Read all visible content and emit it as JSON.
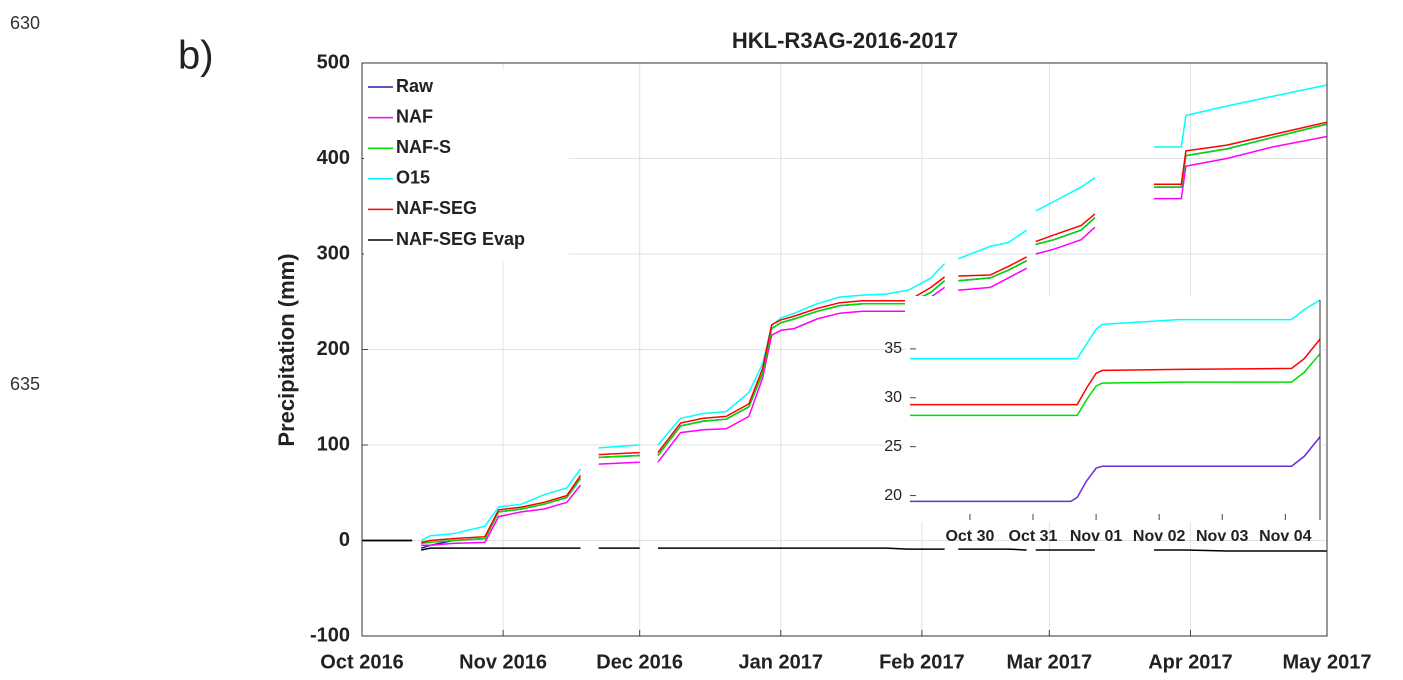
{
  "page": {
    "line_numbers": [
      "630",
      "635"
    ],
    "panel_label": "b)"
  },
  "chart_data": [
    {
      "type": "line",
      "title": "HKL-R3AG-2016-2017",
      "y_label": "Precipitation (mm)",
      "x": [
        0,
        11,
        12,
        13,
        15,
        20,
        27,
        30,
        35,
        40,
        45,
        48,
        50,
        52,
        61,
        63,
        65,
        70,
        75,
        80,
        85,
        88,
        90,
        92,
        95,
        100,
        105,
        110,
        115,
        120,
        125,
        128,
        129.5,
        131,
        138,
        142,
        146,
        147,
        148,
        152,
        158,
        161,
        167,
        174,
        180,
        181,
        190,
        200,
        212
      ],
      "xlim": [
        0,
        212
      ],
      "xticks": [
        {
          "value": 0,
          "label": "Oct 2016"
        },
        {
          "value": 31,
          "label": "Nov 2016"
        },
        {
          "value": 61,
          "label": "Dec 2016"
        },
        {
          "value": 92,
          "label": "Jan 2017"
        },
        {
          "value": 123,
          "label": "Feb 2017"
        },
        {
          "value": 151,
          "label": "Mar 2017"
        },
        {
          "value": 182,
          "label": "Apr 2017"
        },
        {
          "value": 212,
          "label": "May 2017"
        }
      ],
      "ylim": [
        -100,
        500
      ],
      "yticks": [
        -100,
        0,
        100,
        200,
        300,
        400,
        500
      ],
      "grid": true,
      "legend": "upper left",
      "series": [
        {
          "name": "Raw",
          "color": "#1f1fb4",
          "values": [
            0,
            0,
            null,
            -8,
            -5,
            0,
            2,
            30,
            33,
            38,
            45,
            65,
            null,
            87,
            89,
            null,
            89,
            120,
            125,
            127,
            140,
            175,
            222,
            228,
            232,
            240,
            246,
            248,
            248,
            248,
            260,
            272,
            null,
            272,
            275,
            283,
            293,
            null,
            310,
            315,
            325,
            338,
            null,
            370,
            370,
            403,
            410,
            422,
            436
          ]
        },
        {
          "name": "NAF",
          "color": "#ff00ff",
          "values": [
            0,
            0,
            null,
            -5,
            -5,
            -3,
            -2,
            25,
            30,
            33,
            40,
            58,
            null,
            80,
            82,
            null,
            82,
            113,
            116,
            117,
            130,
            170,
            215,
            220,
            222,
            232,
            238,
            240,
            240,
            240,
            255,
            265,
            null,
            262,
            265,
            275,
            285,
            null,
            300,
            305,
            315,
            328,
            null,
            358,
            358,
            392,
            400,
            412,
            423
          ]
        },
        {
          "name": "NAF-S",
          "color": "#00dd00",
          "values": [
            0,
            0,
            null,
            -3,
            -2,
            0,
            2,
            30,
            33,
            38,
            45,
            65,
            null,
            87,
            89,
            null,
            89,
            120,
            125,
            127,
            140,
            175,
            222,
            228,
            232,
            240,
            246,
            248,
            248,
            248,
            260,
            272,
            null,
            272,
            275,
            283,
            293,
            null,
            310,
            315,
            325,
            338,
            null,
            370,
            370,
            403,
            410,
            422,
            436
          ]
        },
        {
          "name": "O15",
          "color": "#00ffff",
          "values": [
            0,
            0,
            null,
            0,
            5,
            7,
            15,
            35,
            38,
            48,
            55,
            75,
            null,
            97,
            100,
            null,
            100,
            128,
            133,
            135,
            155,
            185,
            225,
            233,
            238,
            248,
            255,
            257,
            258,
            262,
            275,
            290,
            null,
            295,
            308,
            312,
            325,
            null,
            345,
            355,
            370,
            380,
            null,
            412,
            412,
            445,
            455,
            465,
            477
          ]
        },
        {
          "name": "NAF-SEG",
          "color": "#ff0000",
          "values": [
            0,
            0,
            null,
            -2,
            0,
            2,
            4,
            32,
            35,
            40,
            47,
            68,
            null,
            90,
            92,
            null,
            92,
            123,
            128,
            130,
            143,
            180,
            226,
            231,
            235,
            243,
            249,
            251,
            251,
            251,
            265,
            276,
            null,
            277,
            278,
            287,
            297,
            null,
            313,
            320,
            330,
            342,
            null,
            373,
            373,
            408,
            414,
            425,
            438
          ]
        },
        {
          "name": "NAF-SEG Evap",
          "color": "#000000",
          "values": [
            0,
            0,
            null,
            -10,
            -8,
            -8,
            -8,
            -8,
            -8,
            -8,
            -8,
            -8,
            null,
            -8,
            -8,
            null,
            -8,
            -8,
            -8,
            -8,
            -8,
            -8,
            -8,
            -8,
            -8,
            -8,
            -8,
            -8,
            -8,
            -9,
            -9,
            -9,
            null,
            -9,
            -9,
            -9,
            -10,
            null,
            -10,
            -10,
            -10,
            -10,
            null,
            -10,
            -10,
            -10,
            -11,
            -11,
            -11
          ]
        }
      ]
    },
    {
      "type": "line",
      "x": [
        -0.95,
        1.6,
        1.7,
        1.85,
        2.0,
        2.1,
        3.3,
        5.1,
        5.3,
        5.55
      ],
      "xlim": [
        -0.95,
        5.55
      ],
      "xticks": [
        {
          "value": 0,
          "label": "Oct 30"
        },
        {
          "value": 1,
          "label": "Oct 31"
        },
        {
          "value": 2,
          "label": "Nov 01"
        },
        {
          "value": 3,
          "label": "Nov 02"
        },
        {
          "value": 4,
          "label": "Nov 03"
        },
        {
          "value": 5,
          "label": "Nov 04"
        }
      ],
      "ylim": [
        17.5,
        40
      ],
      "yticks": [
        20,
        25,
        30,
        35
      ],
      "grid": false,
      "series": [
        {
          "color": "#6a2bd8",
          "values": [
            19.4,
            19.4,
            19.8,
            21.5,
            22.8,
            23,
            23,
            23,
            24,
            26
          ]
        },
        {
          "color": "#00dd00",
          "values": [
            28.2,
            28.2,
            28.2,
            29.8,
            31.2,
            31.5,
            31.6,
            31.6,
            32.6,
            34.5
          ]
        },
        {
          "color": "#00ffff",
          "values": [
            34,
            34,
            34,
            35.5,
            37,
            37.5,
            38,
            38,
            39,
            40
          ]
        },
        {
          "color": "#ff0000",
          "values": [
            29.3,
            29.3,
            29.3,
            31,
            32.5,
            32.8,
            32.9,
            33,
            34,
            36
          ]
        }
      ]
    }
  ]
}
